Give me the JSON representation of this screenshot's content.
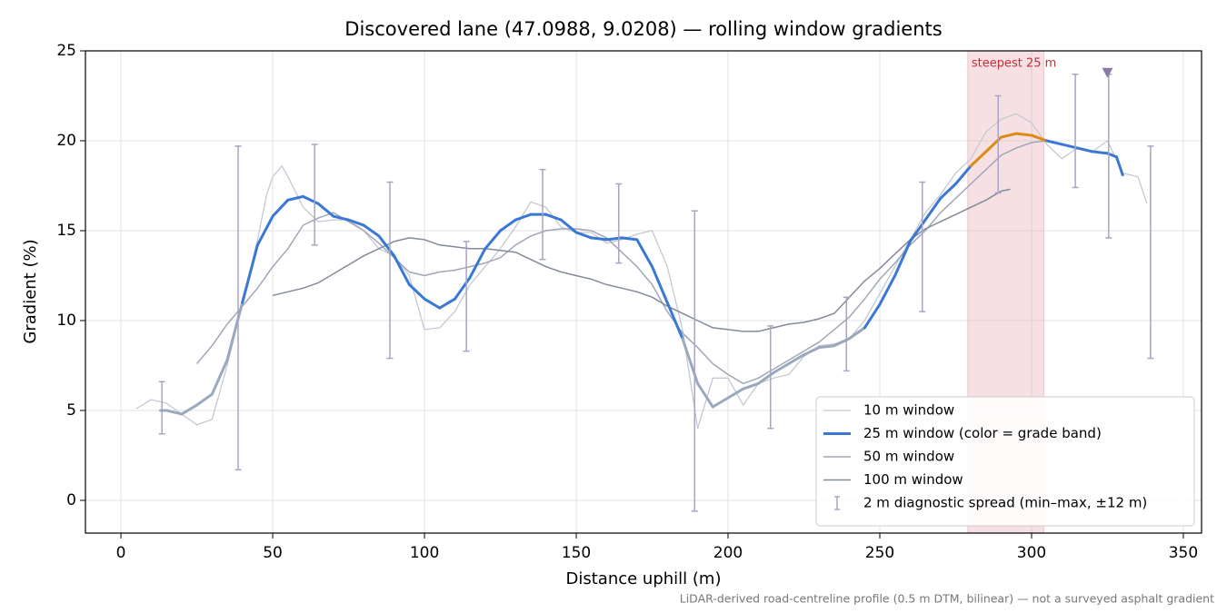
{
  "chart_data": {
    "type": "line",
    "title": "Discovered lane (47.0988, 9.0208) — rolling window gradients",
    "xlabel": "Distance uphill (m)",
    "ylabel": "Gradient (%)",
    "footnote": "LiDAR-derived road-centreline profile (0.5 m DTM, bilinear) — not a surveyed asphalt gradient",
    "xlim": [
      -11.7,
      356
    ],
    "ylim": [
      -1.82,
      25
    ],
    "xticks": [
      0,
      50,
      100,
      150,
      200,
      250,
      300,
      350
    ],
    "yticks": [
      0,
      5,
      10,
      15,
      20,
      25
    ],
    "grid": true,
    "legend": "lower right",
    "highlight": {
      "x": [
        279,
        304
      ],
      "label": "steepest 25 m",
      "color": "#e8a6ae",
      "label_color": "#c0303a",
      "line_color": "#dd8a10"
    },
    "marker": {
      "x": 325,
      "y": 23.8,
      "color": "#8a7aa8"
    },
    "series": [
      {
        "name": "10 m window",
        "color": "#c3c9d3",
        "width": 1.3,
        "x": [
          5,
          10,
          15,
          20,
          25,
          30,
          35,
          40,
          45,
          48,
          50,
          53,
          55,
          58,
          60,
          65,
          70,
          75,
          80,
          85,
          90,
          95,
          100,
          105,
          110,
          115,
          120,
          125,
          130,
          135,
          140,
          145,
          150,
          155,
          160,
          165,
          170,
          175,
          180,
          185,
          190,
          195,
          200,
          205,
          210,
          215,
          220,
          225,
          230,
          235,
          240,
          245,
          250,
          255,
          260,
          265,
          270,
          275,
          280,
          285,
          290,
          295,
          300,
          305,
          310,
          315,
          320,
          325,
          330,
          335,
          338
        ],
        "values": [
          5.1,
          5.6,
          5.4,
          4.8,
          4.2,
          4.5,
          7.5,
          11.0,
          14.5,
          17.0,
          18.0,
          18.6,
          18.0,
          17.0,
          16.3,
          15.5,
          15.6,
          15.6,
          15.0,
          14.0,
          13.6,
          12.5,
          9.5,
          9.6,
          10.5,
          12.0,
          13.0,
          14.0,
          15.2,
          16.6,
          16.3,
          15.2,
          14.9,
          14.9,
          14.3,
          14.5,
          14.8,
          15.0,
          13.0,
          9.5,
          4.0,
          6.8,
          6.8,
          5.3,
          6.5,
          6.8,
          7.0,
          8.0,
          8.6,
          8.7,
          9.0,
          10.0,
          11.5,
          13.0,
          14.5,
          16.0,
          17.0,
          18.2,
          19.0,
          20.5,
          21.2,
          21.5,
          21.0,
          19.8,
          19.0,
          19.6,
          19.4,
          20.0,
          18.2,
          18.0,
          16.5
        ]
      },
      {
        "name": "25 m window (color = grade band)",
        "color": "#3a78d4",
        "width": 3,
        "band": {
          "threshold": 10,
          "below": "#9aa9bd"
        },
        "x": [
          13,
          15,
          20,
          25,
          30,
          35,
          40,
          45,
          50,
          55,
          60,
          65,
          70,
          75,
          80,
          85,
          90,
          95,
          100,
          105,
          110,
          115,
          120,
          125,
          130,
          135,
          140,
          145,
          150,
          155,
          160,
          165,
          170,
          175,
          180,
          185,
          190,
          195,
          200,
          205,
          210,
          215,
          220,
          225,
          230,
          235,
          240,
          245,
          250,
          255,
          260,
          265,
          270,
          275,
          280,
          285,
          290,
          295,
          300,
          305,
          310,
          315,
          320,
          325,
          328,
          330
        ],
        "values": [
          5.0,
          5.0,
          4.8,
          5.3,
          5.9,
          7.8,
          11.0,
          14.2,
          15.8,
          16.7,
          16.9,
          16.5,
          15.8,
          15.6,
          15.3,
          14.7,
          13.6,
          12.0,
          11.2,
          10.7,
          11.2,
          12.4,
          14.0,
          15.0,
          15.6,
          15.9,
          15.9,
          15.6,
          14.9,
          14.6,
          14.5,
          14.6,
          14.5,
          13.0,
          11.0,
          9.0,
          6.5,
          5.2,
          5.7,
          6.2,
          6.5,
          7.1,
          7.6,
          8.1,
          8.5,
          8.6,
          9.0,
          9.6,
          10.9,
          12.5,
          14.4,
          15.6,
          16.8,
          17.6,
          18.6,
          19.4,
          20.2,
          20.4,
          20.3,
          20.0,
          19.8,
          19.6,
          19.4,
          19.3,
          19.1,
          18.1
        ]
      },
      {
        "name": "50 m window",
        "color": "#a2a6b6",
        "width": 1.5,
        "x": [
          25,
          30,
          35,
          40,
          45,
          50,
          55,
          60,
          65,
          70,
          75,
          80,
          85,
          90,
          95,
          100,
          105,
          110,
          115,
          120,
          125,
          130,
          135,
          140,
          145,
          150,
          155,
          160,
          165,
          170,
          175,
          180,
          185,
          190,
          195,
          200,
          205,
          210,
          215,
          220,
          225,
          230,
          235,
          240,
          245,
          250,
          255,
          260,
          265,
          270,
          275,
          280,
          285,
          290,
          295,
          300,
          305
        ],
        "values": [
          7.6,
          8.6,
          9.8,
          10.8,
          11.8,
          13.0,
          14.0,
          15.3,
          15.7,
          16.0,
          15.5,
          15.0,
          14.3,
          13.5,
          12.7,
          12.5,
          12.7,
          12.8,
          13.0,
          13.2,
          13.5,
          14.2,
          14.7,
          15.0,
          15.1,
          15.1,
          15.0,
          14.6,
          13.8,
          13.0,
          12.0,
          10.5,
          9.3,
          8.5,
          7.6,
          7.0,
          6.5,
          6.8,
          7.3,
          7.8,
          8.3,
          8.8,
          9.5,
          10.2,
          11.2,
          12.3,
          13.2,
          14.2,
          15.0,
          16.0,
          16.8,
          17.6,
          18.4,
          19.2,
          19.6,
          19.9,
          20.0
        ]
      },
      {
        "name": "100 m window",
        "color": "#838a9a",
        "width": 1.5,
        "x": [
          50,
          55,
          60,
          65,
          70,
          75,
          80,
          85,
          90,
          95,
          100,
          105,
          110,
          115,
          120,
          125,
          130,
          135,
          140,
          145,
          150,
          155,
          160,
          165,
          170,
          175,
          180,
          185,
          190,
          195,
          200,
          205,
          210,
          215,
          220,
          225,
          230,
          235,
          240,
          245,
          250,
          255,
          260,
          265,
          270,
          275,
          280,
          285,
          290,
          293
        ],
        "values": [
          11.4,
          11.6,
          11.8,
          12.1,
          12.6,
          13.1,
          13.6,
          14.0,
          14.4,
          14.6,
          14.5,
          14.2,
          14.1,
          14.0,
          14.0,
          13.9,
          13.8,
          13.4,
          13.0,
          12.7,
          12.5,
          12.3,
          12.0,
          11.8,
          11.6,
          11.3,
          10.8,
          10.4,
          10.0,
          9.6,
          9.5,
          9.4,
          9.4,
          9.6,
          9.8,
          9.9,
          10.1,
          10.4,
          11.3,
          12.2,
          12.9,
          13.7,
          14.5,
          15.1,
          15.5,
          15.9,
          16.3,
          16.7,
          17.2,
          17.3
        ]
      }
    ],
    "spread": {
      "name": "2 m diagnostic spread (min–max, ±12 m)",
      "color": "#a8a4c4",
      "x": [
        13.5,
        38.6,
        63.8,
        88.6,
        113.8,
        138.9,
        164,
        189,
        214,
        239,
        264,
        289,
        314.4,
        325.4,
        339.2
      ],
      "low": [
        3.7,
        1.7,
        14.2,
        7.9,
        8.3,
        13.4,
        13.2,
        -0.6,
        4.0,
        7.2,
        10.5,
        17.1,
        17.4,
        14.6,
        7.9
      ],
      "high": [
        6.6,
        19.7,
        19.8,
        17.7,
        14.4,
        18.4,
        17.6,
        16.1,
        9.7,
        11.3,
        17.7,
        22.5,
        23.7,
        23.7,
        19.7
      ]
    }
  }
}
